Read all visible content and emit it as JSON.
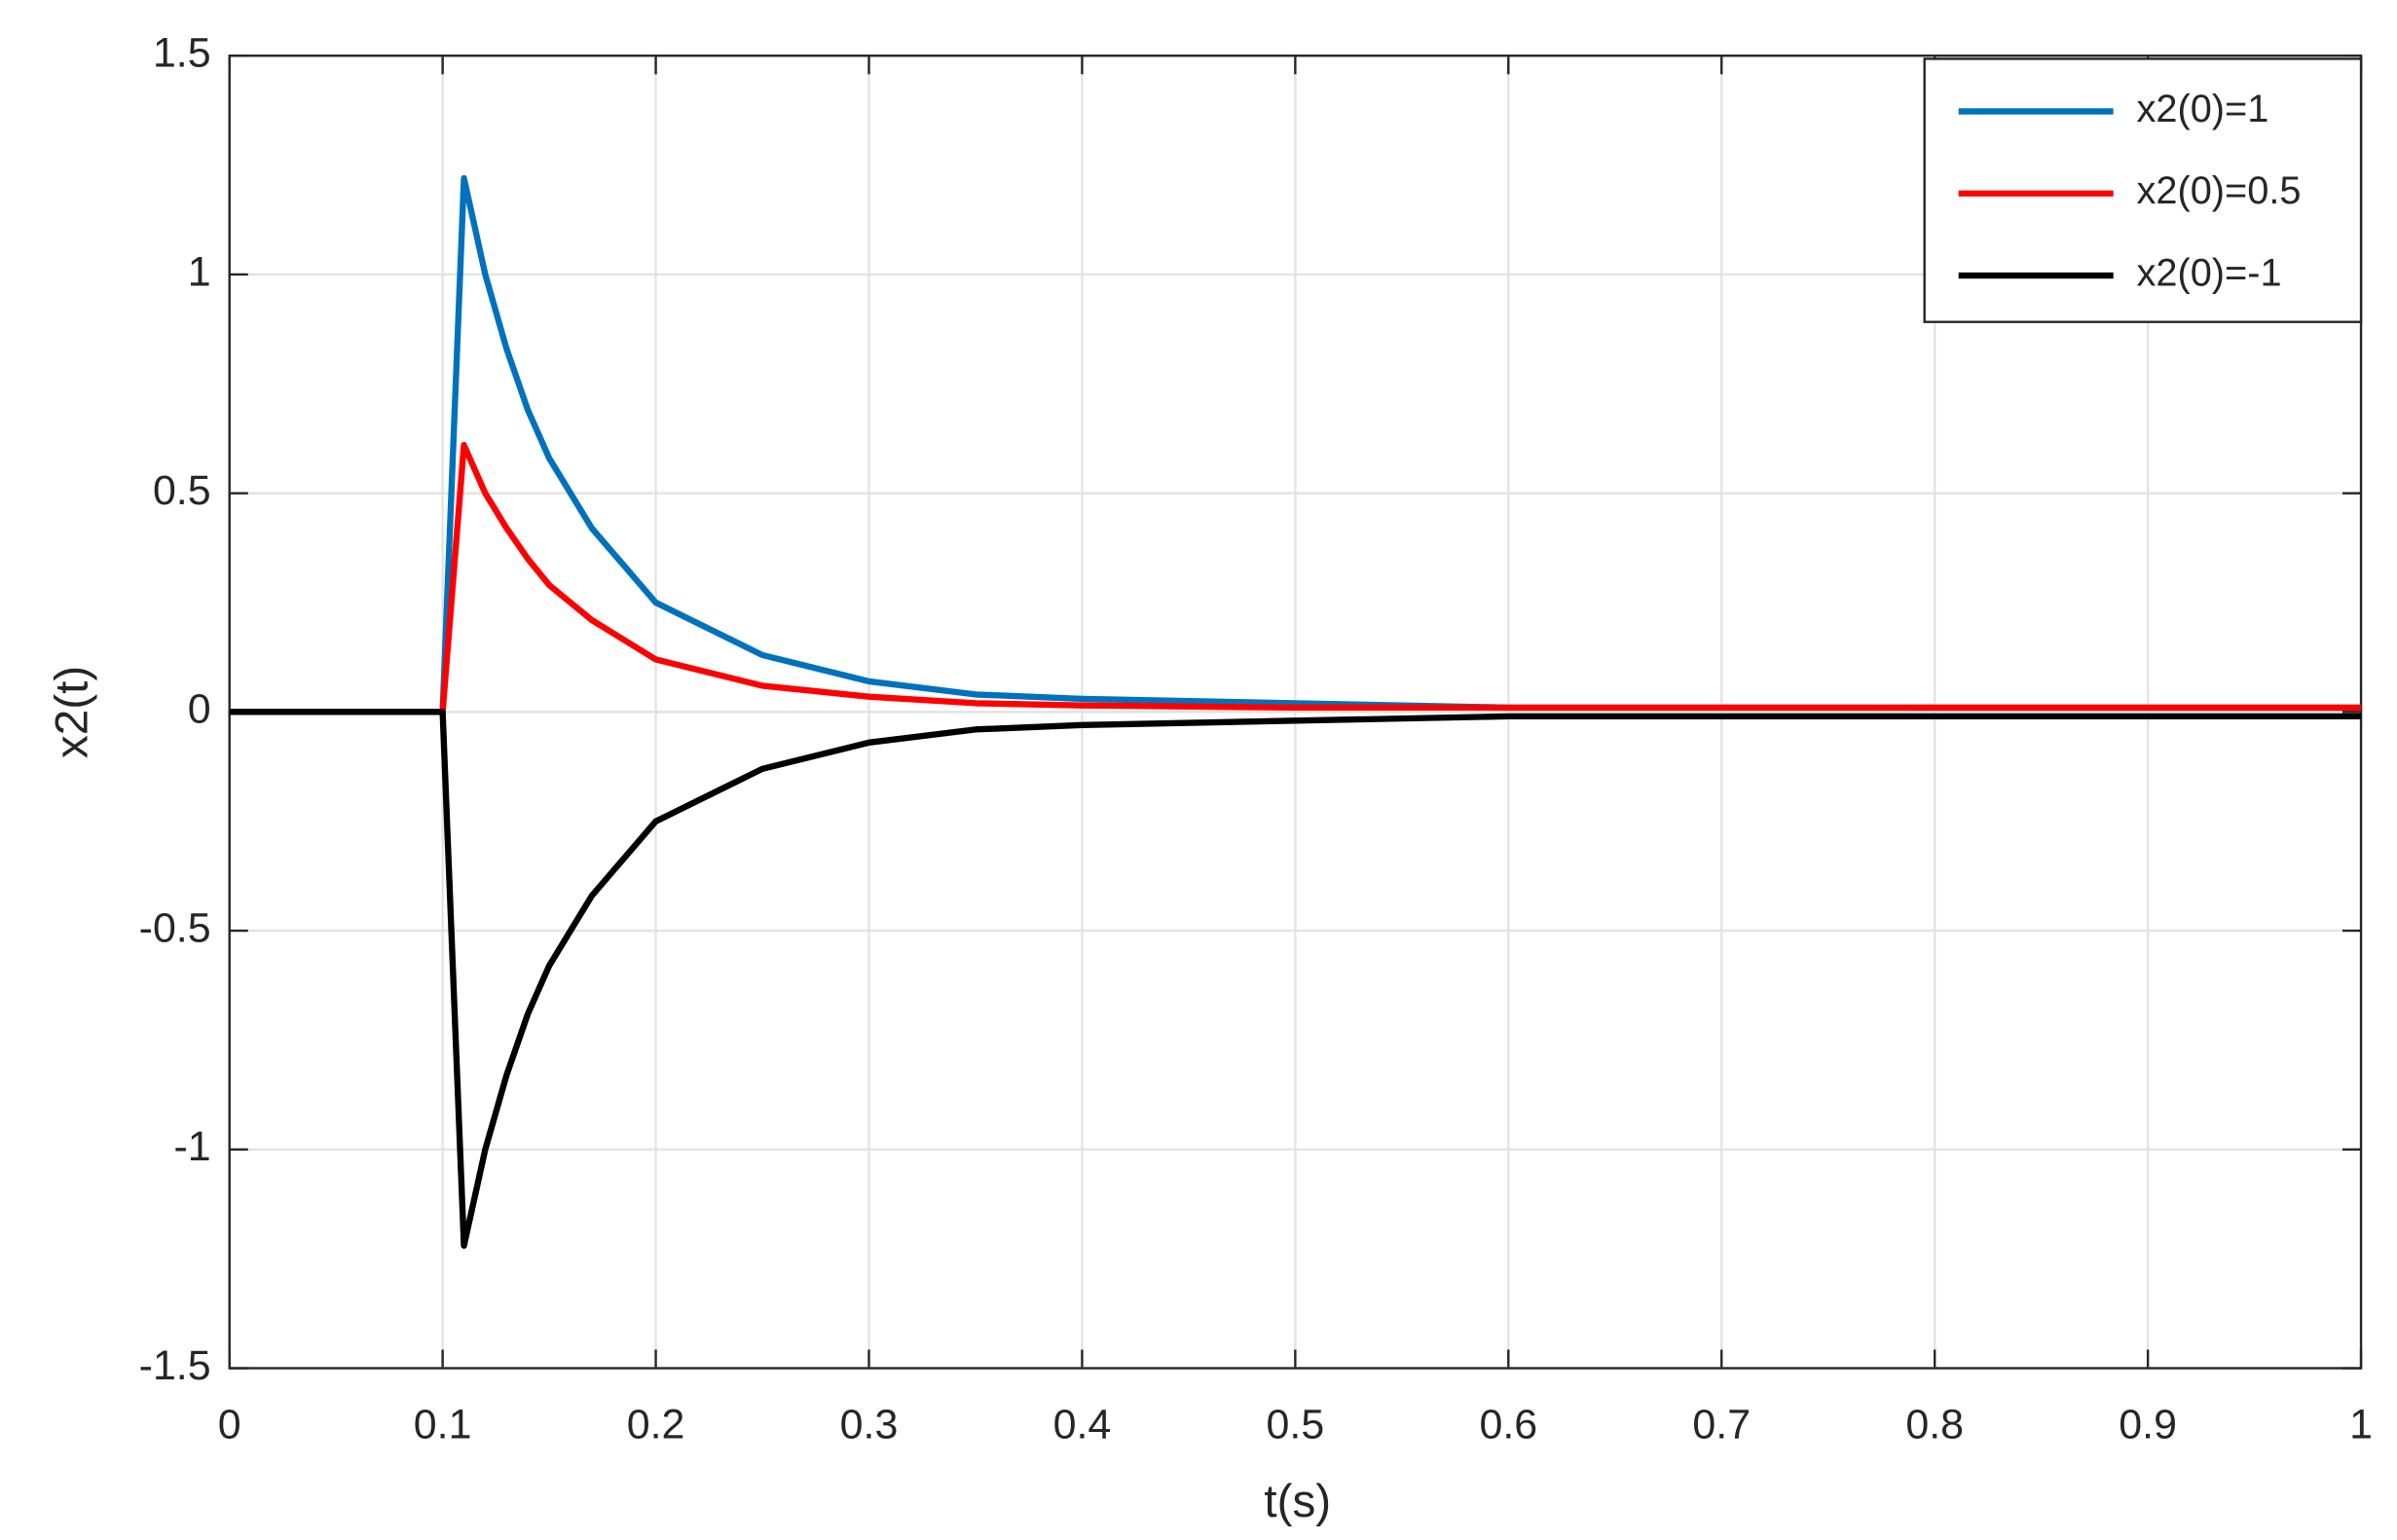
{
  "chart_data": {
    "type": "line",
    "x_label": "t(s)",
    "y_label": "x2(t)",
    "x": [
      0,
      0.1,
      0.11,
      0.12,
      0.13,
      0.14,
      0.15,
      0.17,
      0.2,
      0.25,
      0.3,
      0.35,
      0.4,
      0.5,
      0.6,
      0.8,
      1.0
    ],
    "series": [
      {
        "name": "x2(0)=1",
        "color": "#0072bd",
        "values": [
          0,
          0,
          1.22,
          1.0,
          0.83,
          0.69,
          0.58,
          0.42,
          0.25,
          0.13,
          0.07,
          0.04,
          0.03,
          0.02,
          0.01,
          0.01,
          0.01
        ]
      },
      {
        "name": "x2(0)=0.5",
        "color": "#ff0000",
        "values": [
          0,
          0,
          0.61,
          0.5,
          0.42,
          0.35,
          0.29,
          0.21,
          0.12,
          0.06,
          0.035,
          0.02,
          0.015,
          0.01,
          0.01,
          0.01,
          0.01
        ]
      },
      {
        "name": "x2(0)=-1",
        "color": "#000000",
        "values": [
          0,
          0,
          -1.22,
          -1.0,
          -0.83,
          -0.69,
          -0.58,
          -0.42,
          -0.25,
          -0.13,
          -0.07,
          -0.04,
          -0.03,
          -0.02,
          -0.01,
          -0.01,
          -0.01
        ]
      }
    ],
    "xlim": [
      0,
      1
    ],
    "xticks": [
      0,
      0.1,
      0.2,
      0.3,
      0.4,
      0.5,
      0.6,
      0.7,
      0.8,
      0.9,
      1
    ],
    "ylim": [
      -1.5,
      1.5
    ],
    "yticks": [
      -1.5,
      -1,
      -0.5,
      0,
      0.5,
      1,
      1.5
    ],
    "grid": true,
    "legend": "top-right"
  }
}
